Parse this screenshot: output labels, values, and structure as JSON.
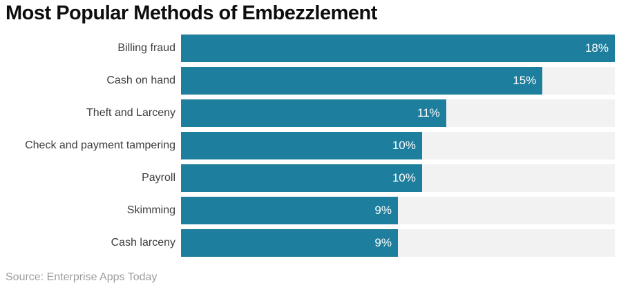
{
  "title": "Most Popular Methods of Embezzlement",
  "source": "Source: Enterprise Apps Today",
  "colors": {
    "bar": "#1e7e9d",
    "track": "#f2f2f2",
    "title": "#0d0d0d",
    "label": "#3d3d3d",
    "value": "#ffffff",
    "source": "#9c9c9c",
    "background": "#ffffff"
  },
  "chart_data": {
    "type": "bar",
    "orientation": "horizontal",
    "title": "Most Popular Methods of Embezzlement",
    "categories": [
      "Billing fraud",
      "Cash on hand",
      "Theft and Larceny",
      "Check and payment tampering",
      "Payroll",
      "Skimming",
      "Cash larceny"
    ],
    "values": [
      18,
      15,
      11,
      10,
      10,
      9,
      9
    ],
    "value_labels": [
      "18%",
      "15%",
      "11%",
      "10%",
      "10%",
      "9%",
      "9%"
    ],
    "unit": "%",
    "xlabel": "",
    "ylabel": "",
    "xlim": [
      0,
      18
    ],
    "grid": false,
    "legend": false,
    "value_label_position": "inside-end",
    "source": "Source: Enterprise Apps Today"
  }
}
